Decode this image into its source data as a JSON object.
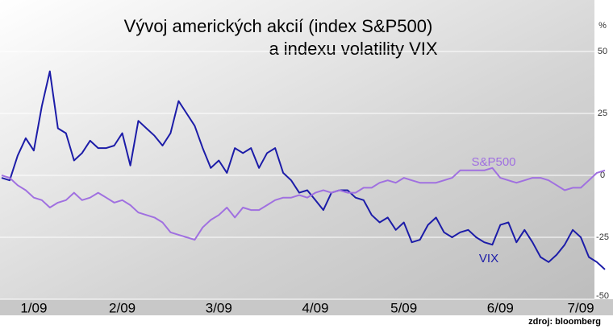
{
  "chart_data": {
    "type": "line",
    "title": [
      "Vývoj amerických akcií (index S&P500)",
      "a indexu volatility VIX"
    ],
    "y_unit": "%",
    "source": "zdroj: bloomberg",
    "categories": [
      null,
      null,
      null,
      null,
      "1/09",
      null,
      null,
      null,
      null,
      null,
      null,
      null,
      null,
      null,
      null,
      "2/09",
      null,
      null,
      null,
      null,
      null,
      null,
      null,
      null,
      null,
      null,
      null,
      "3/09",
      null,
      null,
      null,
      null,
      null,
      null,
      null,
      null,
      null,
      null,
      null,
      "4/09",
      null,
      null,
      null,
      null,
      null,
      null,
      null,
      null,
      null,
      null,
      "5/09",
      null,
      null,
      null,
      null,
      null,
      null,
      null,
      null,
      null,
      null,
      null,
      "6/09",
      null,
      null,
      null,
      null,
      null,
      null,
      null,
      null,
      null,
      "7/09",
      null,
      null,
      null
    ],
    "series": [
      {
        "name": "VIX",
        "color": "#1c1ca8",
        "values": [
          -1,
          -2,
          8,
          15,
          10,
          28,
          42,
          19,
          17,
          6,
          9,
          14,
          11,
          11,
          12,
          17,
          4,
          22,
          19,
          16,
          12,
          17,
          30,
          25,
          20,
          11,
          3,
          6,
          1,
          11,
          9,
          11,
          3,
          9,
          11,
          1,
          -2,
          -7,
          -6,
          -10,
          -14,
          -7,
          -6,
          -6,
          -9,
          -10,
          -16,
          -19,
          -17,
          -22,
          -19,
          -27,
          -26,
          -20,
          -17,
          -23,
          -25,
          -23,
          -22,
          -25,
          -27,
          -28,
          -20,
          -19,
          -27,
          -22,
          -27,
          -33,
          -35,
          -32,
          -28,
          -22,
          -25,
          -33,
          -35,
          -38
        ]
      },
      {
        "name": "S&P500",
        "color": "#a070e0",
        "values": [
          0,
          -1,
          -4,
          -6,
          -9,
          -10,
          -13,
          -11,
          -10,
          -7,
          -10,
          -9,
          -7,
          -9,
          -11,
          -10,
          -12,
          -15,
          -16,
          -17,
          -19,
          -23,
          -24,
          -25,
          -26,
          -21,
          -18,
          -16,
          -13,
          -17,
          -13,
          -14,
          -14,
          -12,
          -10,
          -9,
          -9,
          -8,
          -9,
          -7,
          -6,
          -7,
          -6,
          -7,
          -7,
          -5,
          -5,
          -3,
          -2,
          -3,
          -1,
          -2,
          -3,
          -3,
          -3,
          -2,
          -1,
          2,
          2,
          2,
          2,
          3,
          -1,
          -2,
          -3,
          -2,
          -1,
          -1,
          -2,
          -4,
          -6,
          -5,
          -5,
          -2,
          1,
          2
        ]
      }
    ],
    "ylim": [
      -50,
      50
    ],
    "yticks": [
      50,
      25,
      0,
      -25,
      -50
    ],
    "grid": true
  }
}
